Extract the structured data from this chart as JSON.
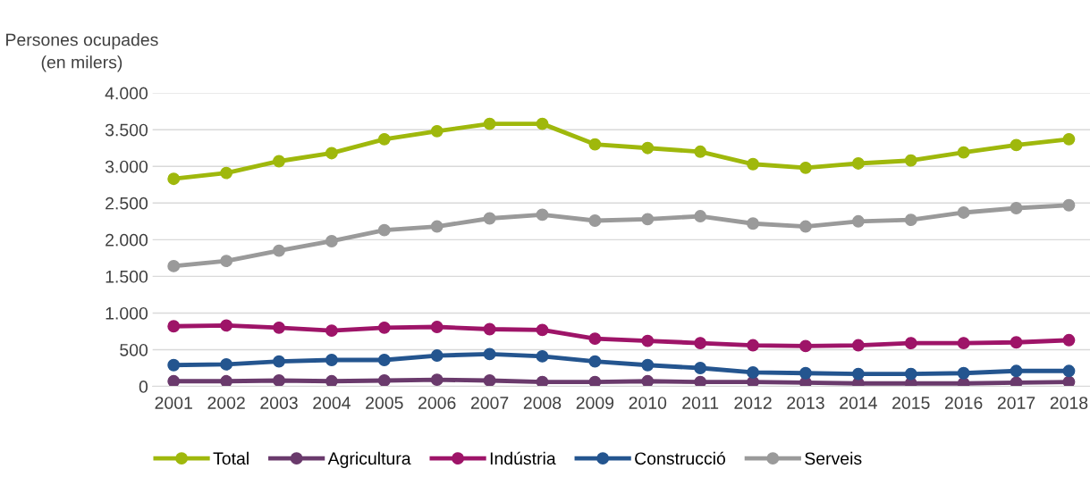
{
  "chart_data": {
    "type": "line",
    "ylabel": "Persones ocupades\n(en milers)",
    "categories": [
      "2001",
      "2002",
      "2003",
      "2004",
      "2005",
      "2006",
      "2007",
      "2008",
      "2009",
      "2010",
      "2011",
      "2012",
      "2013",
      "2014",
      "2015",
      "2016",
      "2017",
      "2018"
    ],
    "series": [
      {
        "name": "Total",
        "color": "#9fb80c",
        "values": [
          2830,
          2910,
          3070,
          3180,
          3370,
          3480,
          3580,
          3580,
          3300,
          3250,
          3200,
          3030,
          2980,
          3040,
          3080,
          3190,
          3290,
          3370
        ]
      },
      {
        "name": "Agricultura",
        "color": "#6a3a6c",
        "values": [
          70,
          70,
          80,
          70,
          80,
          90,
          80,
          60,
          60,
          70,
          60,
          60,
          50,
          40,
          40,
          40,
          50,
          60
        ]
      },
      {
        "name": "Indústria",
        "color": "#9e1468",
        "values": [
          820,
          830,
          800,
          760,
          800,
          810,
          780,
          770,
          650,
          620,
          590,
          560,
          550,
          560,
          590,
          590,
          600,
          630
        ]
      },
      {
        "name": "Construcció",
        "color": "#24558f",
        "values": [
          290,
          300,
          340,
          360,
          360,
          420,
          440,
          410,
          340,
          290,
          250,
          190,
          180,
          170,
          170,
          180,
          210,
          210
        ]
      },
      {
        "name": "Serveis",
        "color": "#9a9a9a",
        "values": [
          1640,
          1710,
          1850,
          1980,
          2130,
          2180,
          2290,
          2340,
          2260,
          2280,
          2320,
          2220,
          2180,
          2250,
          2270,
          2370,
          2430,
          2470
        ]
      }
    ],
    "ylim": [
      0,
      4000
    ],
    "yticks": [
      0,
      {
        "value": 500,
        "label": "500"
      },
      {
        "value": 1000,
        "label": "1.000"
      },
      {
        "value": 1500,
        "label": "1.500"
      },
      {
        "value": 2000,
        "label": "2.000"
      },
      {
        "value": 2500,
        "label": "2.500"
      },
      {
        "value": 3000,
        "label": "3.000"
      },
      {
        "value": 3500,
        "label": "3.500"
      },
      {
        "value": 4000,
        "label": "4.000"
      }
    ],
    "grid": "y",
    "legend": "bottom",
    "marker": "circle",
    "line_style": "solid"
  }
}
